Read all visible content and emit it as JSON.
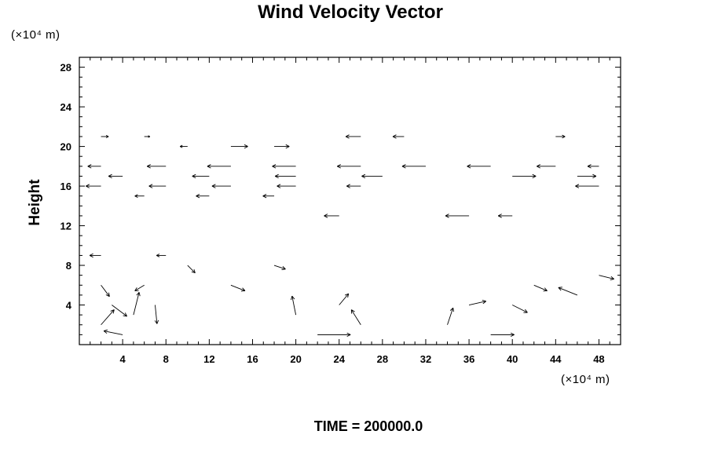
{
  "chart_data": {
    "type": "vector",
    "title": "Wind Velocity Vector",
    "xlabel": "",
    "ylabel": "Height",
    "x_unit": "(×10⁴ m)",
    "y_unit": "(×10⁴ m)",
    "xlim": [
      0,
      50
    ],
    "ylim": [
      0,
      29
    ],
    "xticks": [
      4,
      8,
      12,
      16,
      20,
      24,
      28,
      32,
      36,
      40,
      44,
      48
    ],
    "yticks": [
      4,
      8,
      12,
      16,
      20,
      24,
      28
    ],
    "grid": false,
    "footer": "TIME = 200000.0",
    "vectors": [
      {
        "x": 2,
        "y": 21,
        "u": 0.8,
        "v": 0
      },
      {
        "x": 6,
        "y": 21,
        "u": 0.6,
        "v": 0
      },
      {
        "x": 10,
        "y": 20,
        "u": -0.8,
        "v": 0
      },
      {
        "x": 14,
        "y": 20,
        "u": 1.8,
        "v": 0
      },
      {
        "x": 18,
        "y": 20,
        "u": 1.6,
        "v": 0
      },
      {
        "x": 26,
        "y": 21,
        "u": -1.6,
        "v": 0
      },
      {
        "x": 30,
        "y": 21,
        "u": -1.2,
        "v": 0
      },
      {
        "x": 44,
        "y": 21,
        "u": 1.0,
        "v": 0
      },
      {
        "x": 2,
        "y": 18,
        "u": -1.4,
        "v": 0
      },
      {
        "x": 8,
        "y": 18,
        "u": -2.0,
        "v": 0
      },
      {
        "x": 14,
        "y": 18,
        "u": -2.5,
        "v": 0
      },
      {
        "x": 20,
        "y": 18,
        "u": -2.5,
        "v": 0
      },
      {
        "x": 26,
        "y": 18,
        "u": -2.5,
        "v": 0
      },
      {
        "x": 32,
        "y": 18,
        "u": -2.5,
        "v": 0
      },
      {
        "x": 38,
        "y": 18,
        "u": -2.5,
        "v": 0
      },
      {
        "x": 44,
        "y": 18,
        "u": -2.0,
        "v": 0
      },
      {
        "x": 48,
        "y": 18,
        "u": -1.2,
        "v": 0
      },
      {
        "x": 4,
        "y": 17,
        "u": -1.5,
        "v": 0
      },
      {
        "x": 12,
        "y": 17,
        "u": -1.8,
        "v": 0
      },
      {
        "x": 20,
        "y": 17,
        "u": -2.2,
        "v": 0
      },
      {
        "x": 28,
        "y": 17,
        "u": -2.2,
        "v": 0
      },
      {
        "x": 40,
        "y": 17,
        "u": 2.5,
        "v": 0
      },
      {
        "x": 46,
        "y": 17,
        "u": 2.0,
        "v": 0
      },
      {
        "x": 2,
        "y": 16,
        "u": -1.6,
        "v": 0
      },
      {
        "x": 8,
        "y": 16,
        "u": -1.8,
        "v": 0
      },
      {
        "x": 14,
        "y": 16,
        "u": -2.0,
        "v": 0
      },
      {
        "x": 20,
        "y": 16,
        "u": -2.0,
        "v": 0
      },
      {
        "x": 26,
        "y": 16,
        "u": -1.5,
        "v": 0
      },
      {
        "x": 48,
        "y": 16,
        "u": -2.5,
        "v": 0
      },
      {
        "x": 6,
        "y": 15,
        "u": -1.0,
        "v": 0
      },
      {
        "x": 12,
        "y": 15,
        "u": -1.4,
        "v": 0
      },
      {
        "x": 18,
        "y": 15,
        "u": -1.2,
        "v": 0
      },
      {
        "x": 36,
        "y": 13,
        "u": -2.5,
        "v": 0
      },
      {
        "x": 40,
        "y": 13,
        "u": -1.5,
        "v": 0
      },
      {
        "x": 24,
        "y": 13,
        "u": -1.6,
        "v": 0
      },
      {
        "x": 2,
        "y": 9,
        "u": -1.2,
        "v": 0
      },
      {
        "x": 8,
        "y": 9,
        "u": -1.0,
        "v": 0
      },
      {
        "x": 2,
        "y": 6,
        "u": 0.9,
        "v": -1.2
      },
      {
        "x": 3,
        "y": 4,
        "u": 1.6,
        "v": -1.2
      },
      {
        "x": 2,
        "y": 2,
        "u": 1.4,
        "v": 1.6
      },
      {
        "x": 4,
        "y": 1,
        "u": -2.0,
        "v": 0.4
      },
      {
        "x": 5,
        "y": 3,
        "u": 0.6,
        "v": 2.4
      },
      {
        "x": 6,
        "y": 6,
        "u": -1.0,
        "v": -0.6
      },
      {
        "x": 7,
        "y": 4,
        "u": 0.2,
        "v": -2.0
      },
      {
        "x": 10,
        "y": 8,
        "u": 0.8,
        "v": -0.8
      },
      {
        "x": 14,
        "y": 6,
        "u": 1.5,
        "v": -0.6
      },
      {
        "x": 18,
        "y": 8,
        "u": 1.2,
        "v": -0.4
      },
      {
        "x": 20,
        "y": 3,
        "u": -0.4,
        "v": 2.0
      },
      {
        "x": 22,
        "y": 1,
        "u": 3.5,
        "v": 0
      },
      {
        "x": 24,
        "y": 4,
        "u": 1.0,
        "v": 1.2
      },
      {
        "x": 26,
        "y": 2,
        "u": -1.0,
        "v": 1.6
      },
      {
        "x": 34,
        "y": 2,
        "u": 0.6,
        "v": 1.8
      },
      {
        "x": 36,
        "y": 4,
        "u": 1.8,
        "v": 0.4
      },
      {
        "x": 38,
        "y": 1,
        "u": 2.5,
        "v": 0
      },
      {
        "x": 40,
        "y": 4,
        "u": 1.6,
        "v": -0.8
      },
      {
        "x": 42,
        "y": 6,
        "u": 1.4,
        "v": -0.6
      },
      {
        "x": 46,
        "y": 5,
        "u": -2.0,
        "v": 0.8
      },
      {
        "x": 48,
        "y": 7,
        "u": 1.6,
        "v": -0.4
      }
    ]
  }
}
